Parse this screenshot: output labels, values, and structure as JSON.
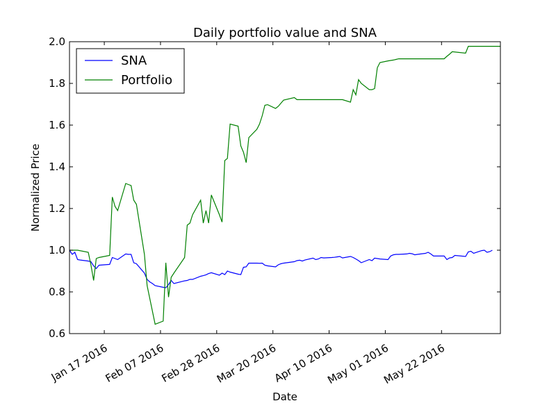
{
  "chart_data": {
    "type": "line",
    "title": "Daily portfolio value and SNA",
    "xlabel": "Date",
    "ylabel": "Normalized Price",
    "xlim": [
      "2016-01-04",
      "2016-06-13"
    ],
    "ylim": [
      0.6,
      2.0
    ],
    "x_ticks": [
      {
        "date": "2016-01-17",
        "label": "Jan 17 2016"
      },
      {
        "date": "2016-02-07",
        "label": "Feb 07 2016"
      },
      {
        "date": "2016-02-28",
        "label": "Feb 28 2016"
      },
      {
        "date": "2016-03-20",
        "label": "Mar 20 2016"
      },
      {
        "date": "2016-04-10",
        "label": "Apr 10 2016"
      },
      {
        "date": "2016-05-01",
        "label": "May 01 2016"
      },
      {
        "date": "2016-05-22",
        "label": "May 22 2016"
      }
    ],
    "y_ticks": [
      "0.6",
      "0.8",
      "1.0",
      "1.2",
      "1.4",
      "1.6",
      "1.8",
      "2.0"
    ],
    "legend_position": "top-left",
    "grid": false,
    "series": [
      {
        "name": "SNA",
        "color": "#0000ff",
        "points": [
          [
            "2016-01-04",
            1.0
          ],
          [
            "2016-01-05",
            0.98
          ],
          [
            "2016-01-06",
            0.99
          ],
          [
            "2016-01-07",
            0.955
          ],
          [
            "2016-01-08",
            0.953
          ],
          [
            "2016-01-11",
            0.948
          ],
          [
            "2016-01-12",
            0.945
          ],
          [
            "2016-01-13",
            0.925
          ],
          [
            "2016-01-14",
            0.912
          ],
          [
            "2016-01-15",
            0.928
          ],
          [
            "2016-01-19",
            0.932
          ],
          [
            "2016-01-20",
            0.965
          ],
          [
            "2016-01-21",
            0.96
          ],
          [
            "2016-01-22",
            0.955
          ],
          [
            "2016-01-25",
            0.982
          ],
          [
            "2016-01-26",
            0.98
          ],
          [
            "2016-01-27",
            0.98
          ],
          [
            "2016-01-28",
            0.94
          ],
          [
            "2016-01-29",
            0.935
          ],
          [
            "2016-02-01",
            0.89
          ],
          [
            "2016-02-02",
            0.86
          ],
          [
            "2016-02-03",
            0.848
          ],
          [
            "2016-02-04",
            0.84
          ],
          [
            "2016-02-05",
            0.83
          ],
          [
            "2016-02-08",
            0.822
          ],
          [
            "2016-02-09",
            0.82
          ],
          [
            "2016-02-10",
            0.835
          ],
          [
            "2016-02-11",
            0.855
          ],
          [
            "2016-02-12",
            0.84
          ],
          [
            "2016-02-16",
            0.853
          ],
          [
            "2016-02-17",
            0.855
          ],
          [
            "2016-02-18",
            0.86
          ],
          [
            "2016-02-19",
            0.86
          ],
          [
            "2016-02-22",
            0.875
          ],
          [
            "2016-02-23",
            0.878
          ],
          [
            "2016-02-24",
            0.882
          ],
          [
            "2016-02-25",
            0.888
          ],
          [
            "2016-02-26",
            0.892
          ],
          [
            "2016-02-29",
            0.88
          ],
          [
            "2016-03-01",
            0.89
          ],
          [
            "2016-03-02",
            0.883
          ],
          [
            "2016-03-03",
            0.9
          ],
          [
            "2016-03-04",
            0.895
          ],
          [
            "2016-03-07",
            0.885
          ],
          [
            "2016-03-08",
            0.883
          ],
          [
            "2016-03-09",
            0.918
          ],
          [
            "2016-03-10",
            0.92
          ],
          [
            "2016-03-11",
            0.938
          ],
          [
            "2016-03-14",
            0.938
          ],
          [
            "2016-03-15",
            0.937
          ],
          [
            "2016-03-16",
            0.938
          ],
          [
            "2016-03-17",
            0.928
          ],
          [
            "2016-03-18",
            0.925
          ],
          [
            "2016-03-21",
            0.92
          ],
          [
            "2016-03-22",
            0.93
          ],
          [
            "2016-03-23",
            0.935
          ],
          [
            "2016-03-24",
            0.938
          ],
          [
            "2016-03-28",
            0.945
          ],
          [
            "2016-03-29",
            0.95
          ],
          [
            "2016-03-30",
            0.952
          ],
          [
            "2016-03-31",
            0.948
          ],
          [
            "2016-04-01",
            0.953
          ],
          [
            "2016-04-04",
            0.962
          ],
          [
            "2016-04-05",
            0.955
          ],
          [
            "2016-04-06",
            0.958
          ],
          [
            "2016-04-07",
            0.965
          ],
          [
            "2016-04-08",
            0.963
          ],
          [
            "2016-04-11",
            0.965
          ],
          [
            "2016-04-12",
            0.966
          ],
          [
            "2016-04-13",
            0.968
          ],
          [
            "2016-04-14",
            0.97
          ],
          [
            "2016-04-15",
            0.963
          ],
          [
            "2016-04-18",
            0.97
          ],
          [
            "2016-04-19",
            0.965
          ],
          [
            "2016-04-20",
            0.958
          ],
          [
            "2016-04-21",
            0.95
          ],
          [
            "2016-04-22",
            0.94
          ],
          [
            "2016-04-25",
            0.955
          ],
          [
            "2016-04-26",
            0.95
          ],
          [
            "2016-04-27",
            0.962
          ],
          [
            "2016-04-28",
            0.96
          ],
          [
            "2016-04-29",
            0.958
          ],
          [
            "2016-05-02",
            0.955
          ],
          [
            "2016-05-03",
            0.972
          ],
          [
            "2016-05-04",
            0.978
          ],
          [
            "2016-05-05",
            0.98
          ],
          [
            "2016-05-06",
            0.98
          ],
          [
            "2016-05-09",
            0.982
          ],
          [
            "2016-05-10",
            0.985
          ],
          [
            "2016-05-11",
            0.983
          ],
          [
            "2016-05-12",
            0.978
          ],
          [
            "2016-05-13",
            0.98
          ],
          [
            "2016-05-16",
            0.985
          ],
          [
            "2016-05-17",
            0.99
          ],
          [
            "2016-05-18",
            0.982
          ],
          [
            "2016-05-19",
            0.972
          ],
          [
            "2016-05-20",
            0.972
          ],
          [
            "2016-05-23",
            0.972
          ],
          [
            "2016-05-24",
            0.955
          ],
          [
            "2016-05-25",
            0.963
          ],
          [
            "2016-05-26",
            0.965
          ],
          [
            "2016-05-27",
            0.975
          ],
          [
            "2016-05-31",
            0.97
          ],
          [
            "2016-06-01",
            0.992
          ],
          [
            "2016-06-02",
            0.995
          ],
          [
            "2016-06-03",
            0.985
          ],
          [
            "2016-06-06",
            0.998
          ],
          [
            "2016-06-07",
            1.0
          ],
          [
            "2016-06-08",
            0.99
          ],
          [
            "2016-06-09",
            0.993
          ],
          [
            "2016-06-10",
            1.0
          ]
        ]
      },
      {
        "name": "Portfolio",
        "color": "#008000",
        "points": [
          [
            "2016-01-04",
            1.0
          ],
          [
            "2016-01-07",
            1.0
          ],
          [
            "2016-01-11",
            0.99
          ],
          [
            "2016-01-12",
            0.93
          ],
          [
            "2016-01-13",
            0.855
          ],
          [
            "2016-01-14",
            0.96
          ],
          [
            "2016-01-15",
            0.965
          ],
          [
            "2016-01-19",
            0.975
          ],
          [
            "2016-01-20",
            1.255
          ],
          [
            "2016-01-21",
            1.21
          ],
          [
            "2016-01-22",
            1.19
          ],
          [
            "2016-01-25",
            1.32
          ],
          [
            "2016-01-26",
            1.315
          ],
          [
            "2016-01-27",
            1.31
          ],
          [
            "2016-01-28",
            1.24
          ],
          [
            "2016-01-29",
            1.22
          ],
          [
            "2016-02-01",
            0.98
          ],
          [
            "2016-02-02",
            0.83
          ],
          [
            "2016-02-05",
            0.645
          ],
          [
            "2016-02-08",
            0.66
          ],
          [
            "2016-02-09",
            0.94
          ],
          [
            "2016-02-10",
            0.775
          ],
          [
            "2016-02-11",
            0.87
          ],
          [
            "2016-02-12",
            0.89
          ],
          [
            "2016-02-16",
            0.965
          ],
          [
            "2016-02-17",
            1.12
          ],
          [
            "2016-02-18",
            1.13
          ],
          [
            "2016-02-19",
            1.17
          ],
          [
            "2016-02-22",
            1.24
          ],
          [
            "2016-02-23",
            1.13
          ],
          [
            "2016-02-24",
            1.19
          ],
          [
            "2016-02-25",
            1.13
          ],
          [
            "2016-02-26",
            1.265
          ],
          [
            "2016-02-29",
            1.17
          ],
          [
            "2016-03-01",
            1.135
          ],
          [
            "2016-03-02",
            1.43
          ],
          [
            "2016-03-03",
            1.44
          ],
          [
            "2016-03-04",
            1.605
          ],
          [
            "2016-03-07",
            1.595
          ],
          [
            "2016-03-08",
            1.5
          ],
          [
            "2016-03-09",
            1.47
          ],
          [
            "2016-03-10",
            1.42
          ],
          [
            "2016-03-11",
            1.54
          ],
          [
            "2016-03-14",
            1.58
          ],
          [
            "2016-03-15",
            1.605
          ],
          [
            "2016-03-16",
            1.645
          ],
          [
            "2016-03-17",
            1.695
          ],
          [
            "2016-03-18",
            1.698
          ],
          [
            "2016-03-21",
            1.68
          ],
          [
            "2016-03-22",
            1.69
          ],
          [
            "2016-03-23",
            1.705
          ],
          [
            "2016-03-24",
            1.72
          ],
          [
            "2016-03-28",
            1.732
          ],
          [
            "2016-03-29",
            1.722
          ],
          [
            "2016-04-15",
            1.722
          ],
          [
            "2016-04-18",
            1.71
          ],
          [
            "2016-04-19",
            1.77
          ],
          [
            "2016-04-20",
            1.745
          ],
          [
            "2016-04-21",
            1.818
          ],
          [
            "2016-04-22",
            1.8
          ],
          [
            "2016-04-25",
            1.77
          ],
          [
            "2016-04-26",
            1.77
          ],
          [
            "2016-04-27",
            1.775
          ],
          [
            "2016-04-28",
            1.875
          ],
          [
            "2016-04-29",
            1.9
          ],
          [
            "2016-05-02",
            1.908
          ],
          [
            "2016-05-03",
            1.91
          ],
          [
            "2016-05-04",
            1.912
          ],
          [
            "2016-05-05",
            1.915
          ],
          [
            "2016-05-06",
            1.918
          ],
          [
            "2016-05-23",
            1.918
          ],
          [
            "2016-05-24",
            1.93
          ],
          [
            "2016-05-25",
            1.94
          ],
          [
            "2016-05-26",
            1.952
          ],
          [
            "2016-05-31",
            1.945
          ],
          [
            "2016-06-01",
            1.978
          ],
          [
            "2016-06-13",
            1.978
          ]
        ]
      }
    ]
  }
}
